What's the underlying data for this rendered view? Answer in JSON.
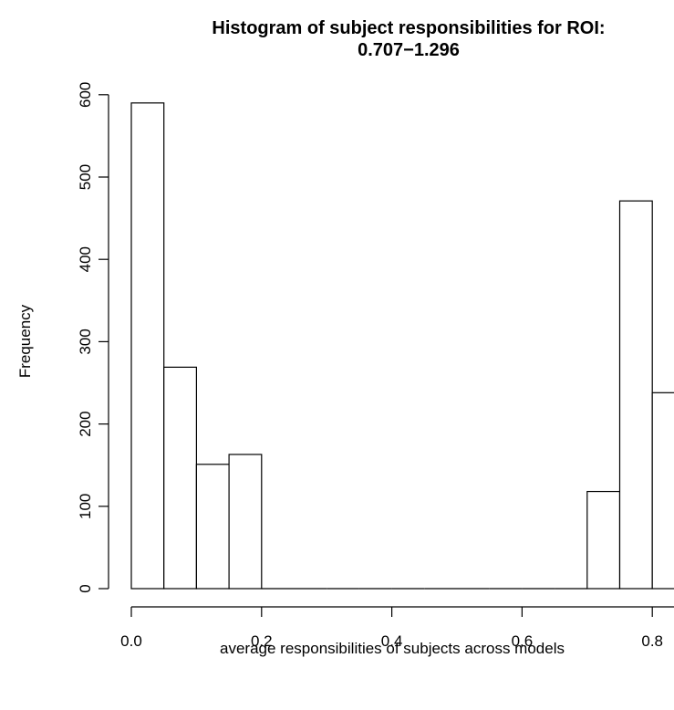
{
  "chart_data": {
    "type": "bar",
    "title_lines": [
      "Histogram of subject responsibilities for ROI:",
      "0.707−1.296"
    ],
    "xlabel": "average responsibilities of subjects across models",
    "ylabel": "Frequency",
    "xlim": [
      0.0,
      0.8
    ],
    "ylim": [
      0,
      600
    ],
    "x_ticks": [
      "0.0",
      "0.2",
      "0.4",
      "0.6",
      "0.8"
    ],
    "x_tick_values": [
      0.0,
      0.2,
      0.4,
      0.6,
      0.8
    ],
    "y_ticks": [
      "0",
      "100",
      "200",
      "300",
      "400",
      "500",
      "600"
    ],
    "y_tick_values": [
      0,
      100,
      200,
      300,
      400,
      500,
      600
    ],
    "bin_width": 0.05,
    "bins": [
      {
        "start": 0.0,
        "end": 0.05,
        "count": 590
      },
      {
        "start": 0.05,
        "end": 0.1,
        "count": 269
      },
      {
        "start": 0.1,
        "end": 0.15,
        "count": 151
      },
      {
        "start": 0.15,
        "end": 0.2,
        "count": 163
      },
      {
        "start": 0.2,
        "end": 0.25,
        "count": 0
      },
      {
        "start": 0.25,
        "end": 0.3,
        "count": 0
      },
      {
        "start": 0.3,
        "end": 0.35,
        "count": 0
      },
      {
        "start": 0.35,
        "end": 0.4,
        "count": 0
      },
      {
        "start": 0.4,
        "end": 0.45,
        "count": 0
      },
      {
        "start": 0.45,
        "end": 0.5,
        "count": 0
      },
      {
        "start": 0.5,
        "end": 0.55,
        "count": 0
      },
      {
        "start": 0.55,
        "end": 0.6,
        "count": 0
      },
      {
        "start": 0.6,
        "end": 0.65,
        "count": 0
      },
      {
        "start": 0.65,
        "end": 0.7,
        "count": 0
      },
      {
        "start": 0.7,
        "end": 0.75,
        "count": 118
      },
      {
        "start": 0.75,
        "end": 0.8,
        "count": 471
      },
      {
        "start": 0.8,
        "end": 0.85,
        "count": 238
      }
    ],
    "grid": false,
    "bar_fill": "#ffffff",
    "bar_stroke": "#000000"
  }
}
